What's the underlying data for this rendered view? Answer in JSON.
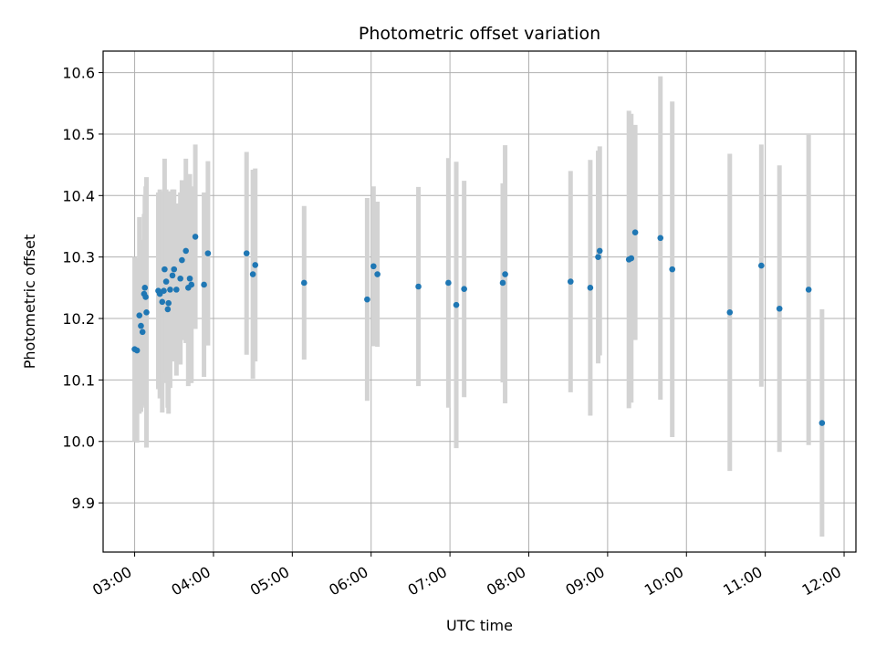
{
  "chart_data": {
    "type": "scatter",
    "title": "Photometric offset variation",
    "xlabel": "UTC time",
    "ylabel": "Photometric offset",
    "x_unit": "hours (UTC)",
    "xlim": [
      2.6,
      12.15
    ],
    "ylim": [
      9.82,
      10.635
    ],
    "x_ticks": [
      {
        "value": 3,
        "label": "03:00"
      },
      {
        "value": 4,
        "label": "04:00"
      },
      {
        "value": 5,
        "label": "05:00"
      },
      {
        "value": 6,
        "label": "06:00"
      },
      {
        "value": 7,
        "label": "07:00"
      },
      {
        "value": 8,
        "label": "08:00"
      },
      {
        "value": 9,
        "label": "09:00"
      },
      {
        "value": 10,
        "label": "10:00"
      },
      {
        "value": 11,
        "label": "11:00"
      },
      {
        "value": 12,
        "label": "12:00"
      }
    ],
    "y_ticks": [
      {
        "value": 9.9,
        "label": "9.9"
      },
      {
        "value": 10.0,
        "label": "10.0"
      },
      {
        "value": 10.1,
        "label": "10.1"
      },
      {
        "value": 10.2,
        "label": "10.2"
      },
      {
        "value": 10.3,
        "label": "10.3"
      },
      {
        "value": 10.4,
        "label": "10.4"
      },
      {
        "value": 10.5,
        "label": "10.5"
      },
      {
        "value": 10.6,
        "label": "10.6"
      }
    ],
    "grid": true,
    "legend": false,
    "colors": {
      "point": "#1f77b4",
      "errorbar": "#d3d3d3",
      "grid": "#b0b0b0",
      "axes": "#000000"
    },
    "series": [
      {
        "x": [
          3.0,
          3.03,
          3.06,
          3.08,
          3.1,
          3.12,
          3.13,
          3.14,
          3.15,
          3.3,
          3.32,
          3.35,
          3.37,
          3.38,
          3.4,
          3.42,
          3.43,
          3.45,
          3.48,
          3.5,
          3.53,
          3.58,
          3.6,
          3.65,
          3.68,
          3.7,
          3.72,
          3.77,
          3.88,
          3.93,
          4.42,
          4.5,
          4.53,
          5.15,
          5.95,
          6.03,
          6.08,
          6.6,
          6.98,
          7.08,
          7.18,
          7.67,
          7.7,
          8.53,
          8.78,
          8.88,
          8.9,
          9.27,
          9.3,
          9.35,
          9.67,
          9.82,
          10.55,
          10.95,
          11.18,
          11.55,
          11.72
        ],
        "y": [
          10.15,
          10.148,
          10.205,
          10.188,
          10.178,
          10.24,
          10.25,
          10.235,
          10.21,
          10.245,
          10.24,
          10.227,
          10.245,
          10.28,
          10.26,
          10.215,
          10.225,
          10.247,
          10.27,
          10.28,
          10.247,
          10.265,
          10.295,
          10.31,
          10.25,
          10.265,
          10.255,
          10.333,
          10.255,
          10.306,
          10.306,
          10.272,
          10.287,
          10.258,
          10.231,
          10.285,
          10.272,
          10.252,
          10.258,
          10.222,
          10.248,
          10.258,
          10.272,
          10.26,
          10.25,
          10.3,
          10.31,
          10.296,
          10.298,
          10.34,
          10.331,
          10.28,
          10.21,
          10.286,
          10.216,
          10.247,
          10.03
        ],
        "err": [
          0.15,
          0.15,
          0.16,
          0.14,
          0.12,
          0.13,
          0.15,
          0.18,
          0.22,
          0.16,
          0.17,
          0.18,
          0.15,
          0.18,
          0.15,
          0.16,
          0.18,
          0.16,
          0.14,
          0.13,
          0.14,
          0.14,
          0.13,
          0.15,
          0.16,
          0.17,
          0.16,
          0.15,
          0.15,
          0.15,
          0.165,
          0.17,
          0.157,
          0.125,
          0.165,
          0.13,
          0.118,
          0.162,
          0.203,
          0.233,
          0.176,
          0.162,
          0.21,
          0.18,
          0.208,
          0.173,
          0.17,
          0.242,
          0.235,
          0.175,
          0.263,
          0.273,
          0.258,
          0.197,
          0.233,
          0.253,
          0.185
        ]
      }
    ]
  }
}
